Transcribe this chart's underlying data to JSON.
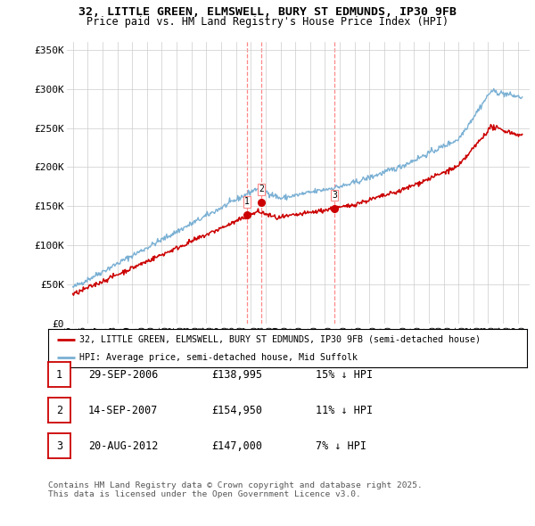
{
  "title_line1": "32, LITTLE GREEN, ELMSWELL, BURY ST EDMUNDS, IP30 9FB",
  "title_line2": "Price paid vs. HM Land Registry's House Price Index (HPI)",
  "background_color": "#ffffff",
  "grid_color": "#cccccc",
  "hpi_color": "#7ab0d4",
  "price_color": "#cc0000",
  "vline_color": "#ff8888",
  "ytick_labels": [
    "£0",
    "£50K",
    "£100K",
    "£150K",
    "£200K",
    "£250K",
    "£300K",
    "£350K"
  ],
  "ytick_values": [
    0,
    50000,
    100000,
    150000,
    200000,
    250000,
    300000,
    350000
  ],
  "ylim": [
    0,
    360000
  ],
  "xlim_start": 1994.6,
  "xlim_end": 2025.8,
  "sales": [
    {
      "label": "1",
      "date_year": 2006.747,
      "price": 138995
    },
    {
      "label": "2",
      "date_year": 2007.706,
      "price": 154950
    },
    {
      "label": "3",
      "date_year": 2012.639,
      "price": 147000
    }
  ],
  "legend_line1": "32, LITTLE GREEN, ELMSWELL, BURY ST EDMUNDS, IP30 9FB (semi-detached house)",
  "legend_line2": "HPI: Average price, semi-detached house, Mid Suffolk",
  "footnote": "Contains HM Land Registry data © Crown copyright and database right 2025.\nThis data is licensed under the Open Government Licence v3.0.",
  "table_rows": [
    {
      "num": "1",
      "date": "29-SEP-2006",
      "price": "£138,995",
      "pct": "15% ↓ HPI"
    },
    {
      "num": "2",
      "date": "14-SEP-2007",
      "price": "£154,950",
      "pct": "11% ↓ HPI"
    },
    {
      "num": "3",
      "date": "20-AUG-2012",
      "price": "£147,000",
      "pct": "7% ↓ HPI"
    }
  ]
}
